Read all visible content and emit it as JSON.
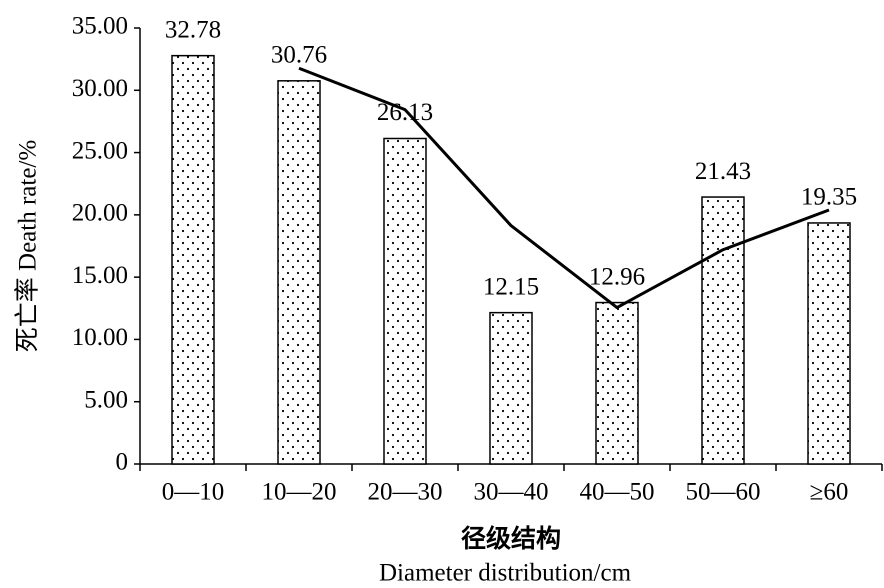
{
  "chart_data": {
    "type": "bar",
    "categories": [
      "0—10",
      "10—20",
      "20—30",
      "30—40",
      "40—50",
      "50—60",
      "≥60"
    ],
    "series": [
      {
        "type": "bar",
        "color": "#000000",
        "values": [
          32.78,
          30.76,
          26.13,
          12.15,
          12.96,
          21.43,
          19.35
        ]
      },
      {
        "type": "line",
        "color": "#000000",
        "values": [
          null,
          31.77,
          28.45,
          19.14,
          12.56,
          17.2,
          20.39
        ]
      }
    ],
    "ylim": [
      0,
      35
    ],
    "yticks": [
      0,
      {
        "value": 5,
        "label": "5.00"
      },
      {
        "value": 10,
        "label": "10.00"
      },
      {
        "value": 15,
        "label": "15.00"
      },
      {
        "value": 20,
        "label": "20.00"
      },
      {
        "value": 25,
        "label": "25.00"
      },
      {
        "value": 30,
        "label": "30.00"
      },
      {
        "value": 35,
        "label": "35.00"
      }
    ],
    "ylabel": "死亡率 Death rate/%",
    "xlabel": "径级结构",
    "xlabel_en": "Diameter distribution/cm"
  }
}
